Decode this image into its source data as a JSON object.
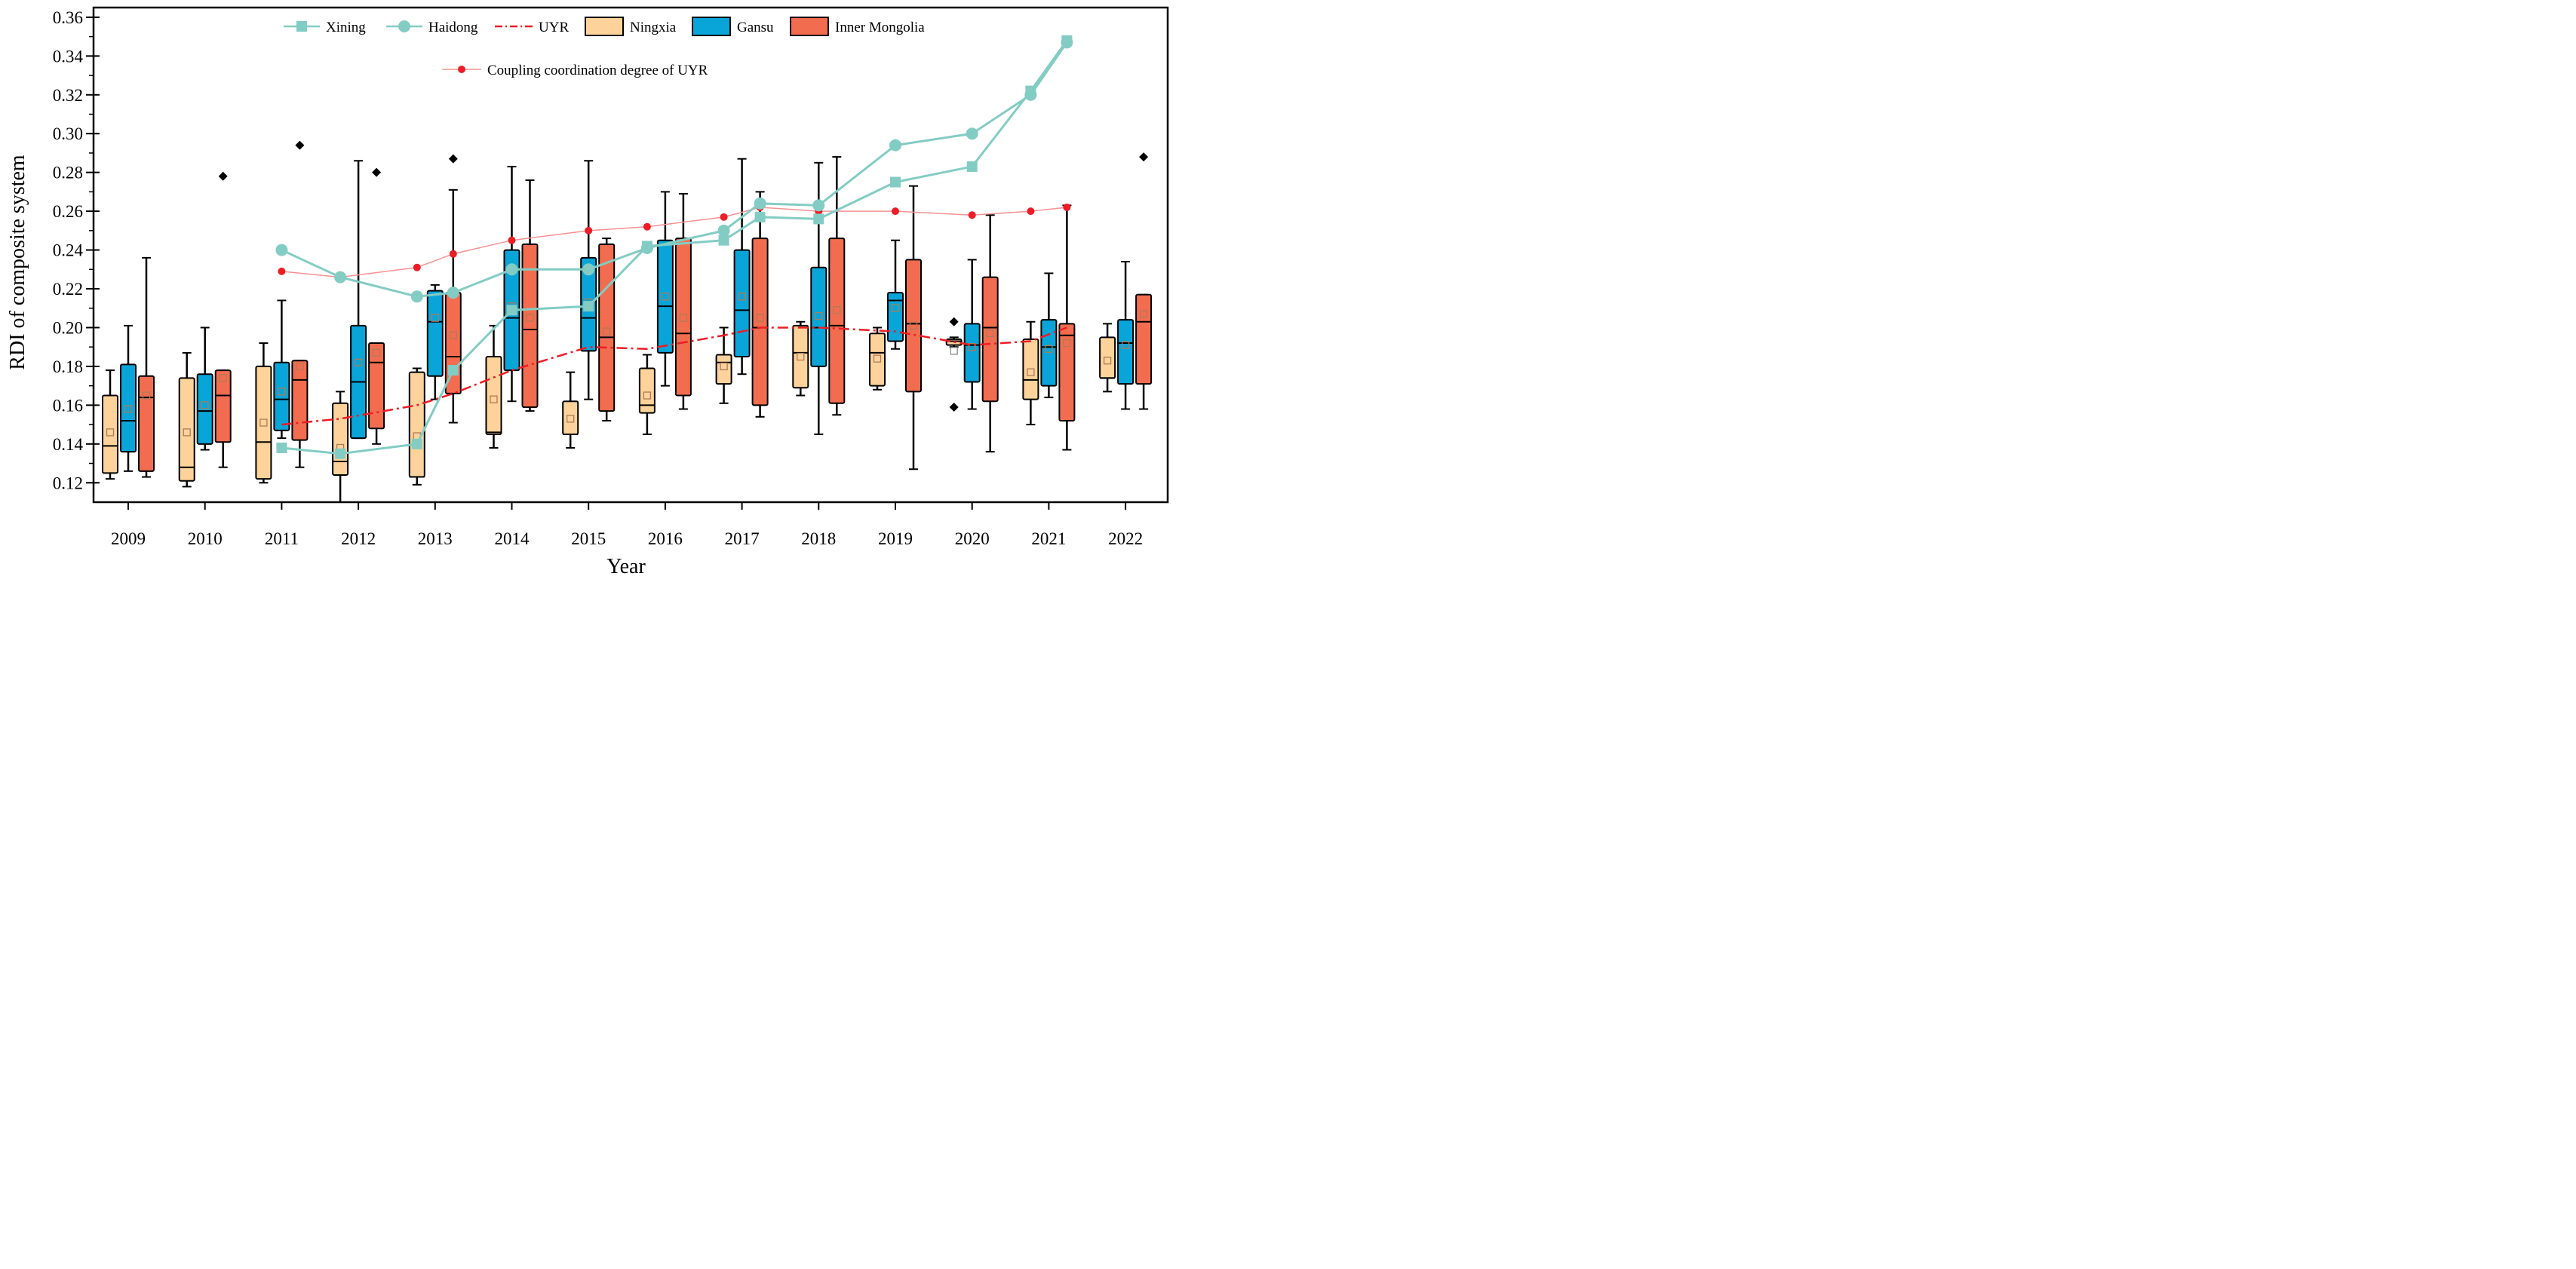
{
  "chart_data": {
    "type": "box",
    "xlabel": "Year",
    "ylabel": "RDI of composite system",
    "ylim": [
      0.11,
      0.365
    ],
    "yticks": [
      0.12,
      0.14,
      0.16,
      0.18,
      0.2,
      0.22,
      0.24,
      0.26,
      0.28,
      0.3,
      0.32,
      0.34,
      0.36
    ],
    "ytick_labels": [
      "0.12",
      "0.14",
      "0.16",
      "0.18",
      "0.20",
      "0.22",
      "0.24",
      "0.26",
      "0.28",
      "0.30",
      "0.32",
      "0.34",
      "0.36"
    ],
    "categories": [
      "2009",
      "2010",
      "2011",
      "2012",
      "2013",
      "2014",
      "2015",
      "2016",
      "2017",
      "2018",
      "2019",
      "2020",
      "2021",
      "2022"
    ],
    "legend": {
      "xining": "Xining",
      "haidong": "Haidong",
      "uyr": "UYR",
      "ningxia": "Ningxia",
      "gansu": "Gansu",
      "inner_mongolia": "Inner Mongolia",
      "coupling": "Coupling coordination degree of UYR"
    },
    "colors": {
      "ningxia": "#fdd39b",
      "gansu": "#0aa5d8",
      "inner_mongolia": "#f26d4f",
      "teal": "#83ccc4",
      "red": "#ee1c25",
      "coupling_line": "#f49292",
      "mean_marker": "#b07a56"
    },
    "boxes": {
      "ningxia": [
        {
          "wlo": 0.122,
          "q1": 0.125,
          "med": 0.139,
          "q3": 0.165,
          "whi": 0.178,
          "mean": 0.146
        },
        {
          "wlo": 0.118,
          "q1": 0.121,
          "med": 0.128,
          "q3": 0.174,
          "whi": 0.187,
          "mean": 0.146
        },
        {
          "wlo": 0.12,
          "q1": 0.122,
          "med": 0.141,
          "q3": 0.18,
          "whi": 0.192,
          "mean": 0.151
        },
        {
          "wlo": 0.11,
          "q1": 0.124,
          "med": 0.131,
          "q3": 0.161,
          "whi": 0.167,
          "mean": 0.138
        },
        {
          "wlo": 0.119,
          "q1": 0.123,
          "med": 0.123,
          "q3": 0.177,
          "whi": 0.179,
          "mean": 0.144
        },
        {
          "wlo": 0.138,
          "q1": 0.145,
          "med": 0.146,
          "q3": 0.185,
          "whi": 0.201,
          "mean": 0.163
        },
        {
          "wlo": 0.138,
          "q1": 0.145,
          "med": 0.145,
          "q3": 0.162,
          "whi": 0.177,
          "mean": 0.153
        },
        {
          "wlo": 0.145,
          "q1": 0.156,
          "med": 0.16,
          "q3": 0.179,
          "whi": 0.186,
          "mean": 0.165
        },
        {
          "wlo": 0.161,
          "q1": 0.171,
          "med": 0.182,
          "q3": 0.186,
          "whi": 0.2,
          "mean": 0.18
        },
        {
          "wlo": 0.165,
          "q1": 0.169,
          "med": 0.187,
          "q3": 0.201,
          "whi": 0.203,
          "mean": 0.185
        },
        {
          "wlo": 0.168,
          "q1": 0.17,
          "med": 0.187,
          "q3": 0.197,
          "whi": 0.2,
          "mean": 0.184
        },
        {
          "wlo": 0.19,
          "q1": 0.191,
          "med": 0.193,
          "q3": 0.194,
          "whi": 0.195,
          "mean": 0.188
        },
        {
          "wlo": 0.15,
          "q1": 0.163,
          "med": 0.173,
          "q3": 0.194,
          "whi": 0.203,
          "mean": 0.177
        },
        {
          "wlo": 0.167,
          "q1": 0.174,
          "med": 0.174,
          "q3": 0.195,
          "whi": 0.202,
          "mean": 0.183
        }
      ],
      "gansu": [
        {
          "wlo": 0.126,
          "q1": 0.136,
          "med": 0.152,
          "q3": 0.181,
          "whi": 0.201,
          "mean": 0.158
        },
        {
          "wlo": 0.137,
          "q1": 0.14,
          "med": 0.157,
          "q3": 0.176,
          "whi": 0.2,
          "mean": 0.16
        },
        {
          "wlo": 0.143,
          "q1": 0.147,
          "med": 0.163,
          "q3": 0.182,
          "whi": 0.214,
          "mean": 0.167
        },
        {
          "wlo": 0.143,
          "q1": 0.143,
          "med": 0.172,
          "q3": 0.201,
          "whi": 0.286,
          "mean": 0.182
        },
        {
          "wlo": 0.163,
          "q1": 0.175,
          "med": 0.203,
          "q3": 0.219,
          "whi": 0.222,
          "mean": 0.205
        },
        {
          "wlo": 0.162,
          "q1": 0.178,
          "med": 0.205,
          "q3": 0.24,
          "whi": 0.283,
          "mean": 0.211
        },
        {
          "wlo": 0.163,
          "q1": 0.188,
          "med": 0.205,
          "q3": 0.236,
          "whi": 0.286,
          "mean": 0.213
        },
        {
          "wlo": 0.17,
          "q1": 0.187,
          "med": 0.211,
          "q3": 0.245,
          "whi": 0.27,
          "mean": 0.216
        },
        {
          "wlo": 0.176,
          "q1": 0.185,
          "med": 0.209,
          "q3": 0.24,
          "whi": 0.287,
          "mean": 0.216
        },
        {
          "wlo": 0.145,
          "q1": 0.18,
          "med": 0.2,
          "q3": 0.231,
          "whi": 0.285,
          "mean": 0.206
        },
        {
          "wlo": 0.189,
          "q1": 0.193,
          "med": 0.214,
          "q3": 0.218,
          "whi": 0.245,
          "mean": 0.21
        },
        {
          "wlo": 0.158,
          "q1": 0.172,
          "med": 0.191,
          "q3": 0.202,
          "whi": 0.235,
          "mean": 0.19
        },
        {
          "wlo": 0.164,
          "q1": 0.17,
          "med": 0.19,
          "q3": 0.204,
          "whi": 0.228,
          "mean": 0.189
        },
        {
          "wlo": 0.158,
          "q1": 0.171,
          "med": 0.192,
          "q3": 0.204,
          "whi": 0.234,
          "mean": 0.191
        }
      ],
      "inner_mongolia": [
        {
          "wlo": 0.123,
          "q1": 0.126,
          "med": 0.164,
          "q3": 0.175,
          "whi": 0.236,
          "mean": 0.165
        },
        {
          "wlo": 0.128,
          "q1": 0.141,
          "med": 0.165,
          "q3": 0.178,
          "whi": 0.178,
          "mean": 0.174
        },
        {
          "wlo": 0.128,
          "q1": 0.142,
          "med": 0.173,
          "q3": 0.183,
          "whi": 0.183,
          "mean": 0.18
        },
        {
          "wlo": 0.14,
          "q1": 0.148,
          "med": 0.182,
          "q3": 0.192,
          "whi": 0.192,
          "mean": 0.187
        },
        {
          "wlo": 0.151,
          "q1": 0.166,
          "med": 0.185,
          "q3": 0.218,
          "whi": 0.271,
          "mean": 0.196
        },
        {
          "wlo": 0.157,
          "q1": 0.159,
          "med": 0.199,
          "q3": 0.243,
          "whi": 0.276,
          "mean": 0.205
        },
        {
          "wlo": 0.152,
          "q1": 0.157,
          "med": 0.195,
          "q3": 0.243,
          "whi": 0.246,
          "mean": 0.198
        },
        {
          "wlo": 0.158,
          "q1": 0.165,
          "med": 0.197,
          "q3": 0.246,
          "whi": 0.269,
          "mean": 0.205
        },
        {
          "wlo": 0.154,
          "q1": 0.16,
          "med": 0.2,
          "q3": 0.246,
          "whi": 0.27,
          "mean": 0.205
        },
        {
          "wlo": 0.155,
          "q1": 0.161,
          "med": 0.201,
          "q3": 0.246,
          "whi": 0.288,
          "mean": 0.209
        },
        {
          "wlo": 0.127,
          "q1": 0.167,
          "med": 0.202,
          "q3": 0.235,
          "whi": 0.273,
          "mean": 0.201
        },
        {
          "wlo": 0.136,
          "q1": 0.162,
          "med": 0.2,
          "q3": 0.226,
          "whi": 0.258,
          "mean": 0.197
        },
        {
          "wlo": 0.137,
          "q1": 0.152,
          "med": 0.196,
          "q3": 0.202,
          "whi": 0.263,
          "mean": 0.192
        },
        {
          "wlo": 0.158,
          "q1": 0.171,
          "med": 0.203,
          "q3": 0.217,
          "whi": 0.217,
          "mean": 0.207
        }
      ]
    },
    "outliers": [
      {
        "series": "inner_mongolia",
        "year": "2010",
        "value": 0.278
      },
      {
        "series": "inner_mongolia",
        "year": "2011",
        "value": 0.294
      },
      {
        "series": "inner_mongolia",
        "year": "2012",
        "value": 0.28
      },
      {
        "series": "inner_mongolia",
        "year": "2013",
        "value": 0.287
      },
      {
        "series": "ningxia",
        "year": "2020",
        "value": 0.203
      },
      {
        "series": "ningxia",
        "year": "2020",
        "value": 0.159
      },
      {
        "series": "inner_mongolia",
        "year": "2022",
        "value": 0.288
      }
    ],
    "lines": {
      "xining": {
        "points": [
          {
            "year": "2011",
            "pos": "gansu",
            "value": 0.138
          },
          {
            "year": "2012",
            "pos": "ningxia",
            "value": 0.135
          },
          {
            "year": "2013",
            "pos": "ningxia",
            "value": 0.14
          },
          {
            "year": "2013",
            "pos": "inner_mongolia",
            "value": 0.178
          },
          {
            "year": "2014",
            "pos": "gansu",
            "value": 0.209
          },
          {
            "year": "2015",
            "pos": "gansu",
            "value": 0.211
          },
          {
            "year": "2016",
            "pos": "ningxia",
            "value": 0.242
          },
          {
            "year": "2017",
            "pos": "ningxia",
            "value": 0.245
          },
          {
            "year": "2017",
            "pos": "inner_mongolia",
            "value": 0.257
          },
          {
            "year": "2018",
            "pos": "gansu",
            "value": 0.256
          },
          {
            "year": "2019",
            "pos": "gansu",
            "value": 0.275
          },
          {
            "year": "2020",
            "pos": "gansu",
            "value": 0.283
          },
          {
            "year": "2021",
            "pos": "ningxia",
            "value": 0.322
          },
          {
            "year": "2021",
            "pos": "inner_mongolia",
            "value": 0.348
          }
        ]
      },
      "haidong": {
        "points": [
          {
            "year": "2011",
            "pos": "gansu",
            "value": 0.24
          },
          {
            "year": "2012",
            "pos": "ningxia",
            "value": 0.226
          },
          {
            "year": "2013",
            "pos": "ningxia",
            "value": 0.216
          },
          {
            "year": "2013",
            "pos": "inner_mongolia",
            "value": 0.218
          },
          {
            "year": "2014",
            "pos": "gansu",
            "value": 0.23
          },
          {
            "year": "2015",
            "pos": "gansu",
            "value": 0.23
          },
          {
            "year": "2016",
            "pos": "ningxia",
            "value": 0.241
          },
          {
            "year": "2017",
            "pos": "ningxia",
            "value": 0.25
          },
          {
            "year": "2017",
            "pos": "inner_mongolia",
            "value": 0.264
          },
          {
            "year": "2018",
            "pos": "gansu",
            "value": 0.263
          },
          {
            "year": "2019",
            "pos": "gansu",
            "value": 0.294
          },
          {
            "year": "2020",
            "pos": "gansu",
            "value": 0.3
          },
          {
            "year": "2021",
            "pos": "ningxia",
            "value": 0.32
          },
          {
            "year": "2021",
            "pos": "inner_mongolia",
            "value": 0.347
          }
        ]
      },
      "uyr": {
        "points": [
          {
            "year": "2011",
            "pos": "gansu",
            "value": 0.15
          },
          {
            "year": "2012",
            "pos": "ningxia",
            "value": 0.153
          },
          {
            "year": "2013",
            "pos": "ningxia",
            "value": 0.16
          },
          {
            "year": "2013",
            "pos": "inner_mongolia",
            "value": 0.166
          },
          {
            "year": "2014",
            "pos": "gansu",
            "value": 0.178
          },
          {
            "year": "2015",
            "pos": "gansu",
            "value": 0.19
          },
          {
            "year": "2016",
            "pos": "ningxia",
            "value": 0.189
          },
          {
            "year": "2017",
            "pos": "ningxia",
            "value": 0.196
          },
          {
            "year": "2017",
            "pos": "inner_mongolia",
            "value": 0.2
          },
          {
            "year": "2018",
            "pos": "gansu",
            "value": 0.2
          },
          {
            "year": "2019",
            "pos": "gansu",
            "value": 0.198
          },
          {
            "year": "2020",
            "pos": "gansu",
            "value": 0.191
          },
          {
            "year": "2021",
            "pos": "ningxia",
            "value": 0.193
          },
          {
            "year": "2021",
            "pos": "inner_mongolia",
            "value": 0.2
          }
        ]
      },
      "coupling": {
        "points": [
          {
            "year": "2011",
            "pos": "gansu",
            "value": 0.229
          },
          {
            "year": "2012",
            "pos": "ningxia",
            "value": 0.226
          },
          {
            "year": "2013",
            "pos": "ningxia",
            "value": 0.231
          },
          {
            "year": "2013",
            "pos": "inner_mongolia",
            "value": 0.238
          },
          {
            "year": "2014",
            "pos": "gansu",
            "value": 0.245
          },
          {
            "year": "2015",
            "pos": "gansu",
            "value": 0.25
          },
          {
            "year": "2016",
            "pos": "ningxia",
            "value": 0.252
          },
          {
            "year": "2017",
            "pos": "ningxia",
            "value": 0.257
          },
          {
            "year": "2017",
            "pos": "inner_mongolia",
            "value": 0.262
          },
          {
            "year": "2018",
            "pos": "gansu",
            "value": 0.26
          },
          {
            "year": "2019",
            "pos": "gansu",
            "value": 0.26
          },
          {
            "year": "2020",
            "pos": "gansu",
            "value": 0.258
          },
          {
            "year": "2021",
            "pos": "ningxia",
            "value": 0.26
          },
          {
            "year": "2021",
            "pos": "inner_mongolia",
            "value": 0.262
          }
        ]
      }
    }
  }
}
